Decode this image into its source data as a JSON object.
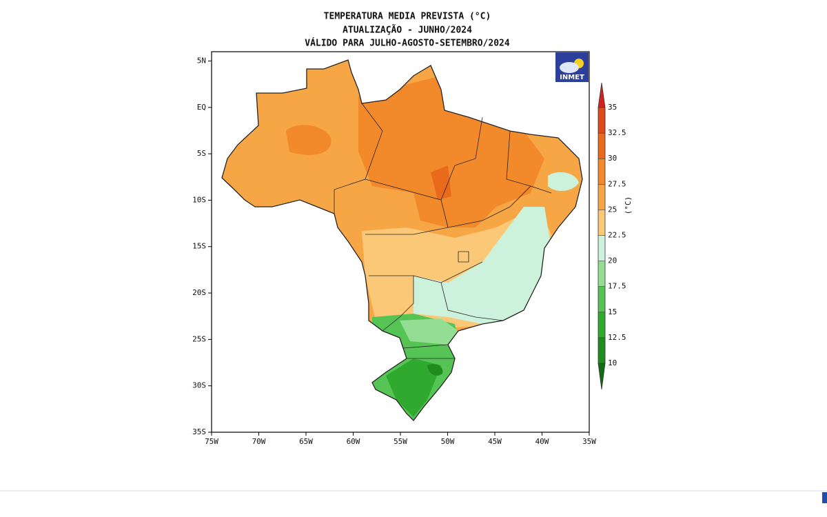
{
  "map": {
    "title_lines": [
      "TEMPERATURA MEDIA PREVISTA (°C)",
      "ATUALIZAÇÃO - JUNHO/2024",
      "VÁLIDO PARA JULHO-AGOSTO-SETEMBRO/2024"
    ],
    "logo": "INMET",
    "lon_range": [
      -75,
      -35
    ],
    "lat_range": [
      6,
      -35
    ],
    "lon_ticks": [
      {
        "value": -75,
        "label": "75W"
      },
      {
        "value": -70,
        "label": "70W"
      },
      {
        "value": -65,
        "label": "65W"
      },
      {
        "value": -60,
        "label": "60W"
      },
      {
        "value": -55,
        "label": "55W"
      },
      {
        "value": -50,
        "label": "50W"
      },
      {
        "value": -45,
        "label": "45W"
      },
      {
        "value": -40,
        "label": "40W"
      },
      {
        "value": -35,
        "label": "35W"
      }
    ],
    "lat_ticks": [
      {
        "value": 5,
        "label": "5N"
      },
      {
        "value": 0,
        "label": "EQ"
      },
      {
        "value": -5,
        "label": "5S"
      },
      {
        "value": -10,
        "label": "10S"
      },
      {
        "value": -15,
        "label": "15S"
      },
      {
        "value": -20,
        "label": "20S"
      },
      {
        "value": -25,
        "label": "25S"
      },
      {
        "value": -30,
        "label": "30S"
      },
      {
        "value": -35,
        "label": "35S"
      }
    ],
    "colorbar": {
      "unit": "(°C)",
      "clim": [
        10,
        35
      ],
      "ticks": [
        10,
        12.5,
        15,
        17.5,
        20,
        22.5,
        25,
        27.5,
        30,
        32.5,
        35
      ],
      "colors": [
        "#1f8c1f",
        "#2faa2f",
        "#55c455",
        "#93de93",
        "#cdf2dc",
        "#fbc878",
        "#f7a646",
        "#f28a2c",
        "#ea6a1c",
        "#e04a18"
      ],
      "under_color": "#0f6e0f",
      "over_color": "#d42020"
    }
  }
}
